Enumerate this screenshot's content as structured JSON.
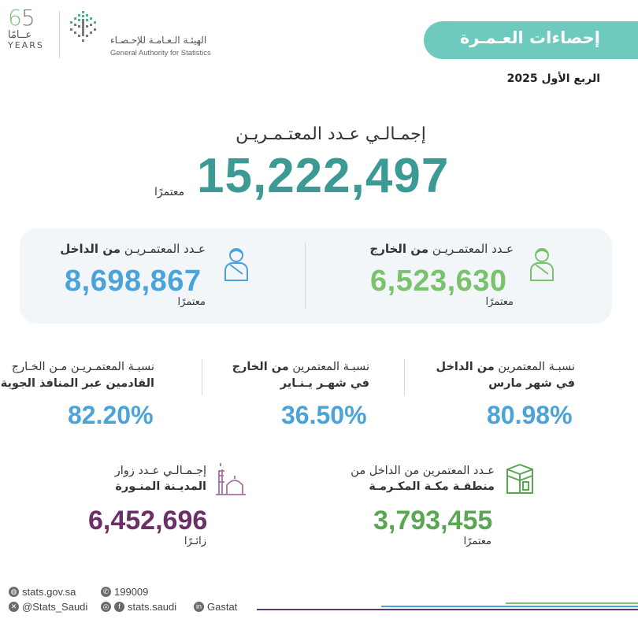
{
  "header": {
    "anniversary": {
      "number_a": "6",
      "number_b": "5",
      "arabic": "عــامًا",
      "english": "YEARS"
    },
    "org_name_ar": "الهيئـة الـعـامـة للإحـصـاء",
    "org_name_en": "General Authority for Statistics",
    "title": "إحصاءات العـمـرة",
    "period": "الربع الأول 2025"
  },
  "total": {
    "label": "إجمـالـي عـدد المعتـمـريـن",
    "value": "15,222,497",
    "unit": "معتمرًا"
  },
  "abroad": {
    "label_prefix": "عـدد المعتمـريـن ",
    "label_bold": "من الخارج",
    "value": "6,523,630",
    "unit": "معتمرًا",
    "color": "#7bc26c"
  },
  "domestic": {
    "label_prefix": "عـدد المعتمـريـن ",
    "label_bold": "من الداخل",
    "value": "8,698,867",
    "unit": "معتمرًا",
    "color": "#4aa3d9"
  },
  "percentages": [
    {
      "line1_prefix": "نسبـة المعتمرين ",
      "line1_bold": "من الداخل",
      "line2": "في شهر مارس",
      "value": "80.98%"
    },
    {
      "line1_prefix": "نسبـة المعتمرين ",
      "line1_bold": "من الخارج",
      "line2": "في شهـر يـنـاير",
      "value": "36.50%"
    },
    {
      "line1_prefix": "نسبـة المعتمـريـن مـن الخـارج",
      "line1_bold": "",
      "line2": "القادمين عبر المنافذ الجوية",
      "value": "82.20%"
    }
  ],
  "makkah": {
    "line1": "عـدد المعتمرين من الداخل من",
    "line2": "منطقـة مكـة المكـرمـة",
    "value": "3,793,455",
    "unit": "معتمرًا",
    "color": "#5aa653"
  },
  "madinah": {
    "line1": "إجـمـالـي عـدد زوار",
    "line2": "المديـنة المنـورة",
    "value": "6,452,696",
    "unit": "زائـرًا",
    "color": "#6b2e67"
  },
  "footer": {
    "website": "stats.gov.sa",
    "phone": "199009",
    "twitter": "@Stats_Saudi",
    "social": "stats.saudi",
    "linkedin": "Gastat"
  },
  "colors": {
    "teal": "#6ec9be",
    "total": "#3b9a93",
    "blue": "#4aa3d9",
    "green": "#7bc26c",
    "purple": "#6b2e67"
  }
}
